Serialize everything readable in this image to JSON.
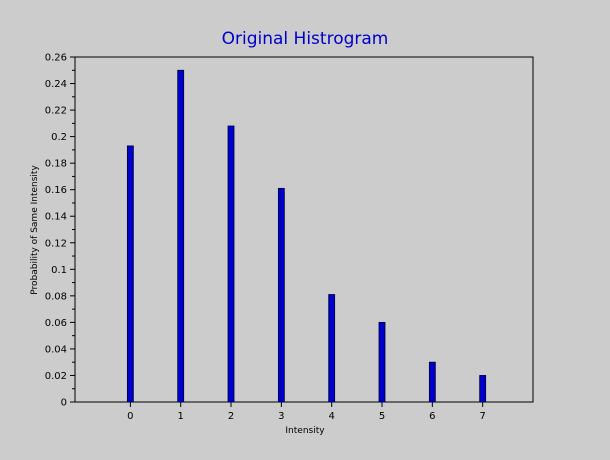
{
  "chart_data": {
    "type": "bar",
    "title": "Original Histrogram",
    "xlabel": "Intensity",
    "ylabel": "Probability of Same Intensity",
    "categories": [
      "0",
      "1",
      "2",
      "3",
      "4",
      "5",
      "6",
      "7"
    ],
    "x": [
      0,
      1,
      2,
      3,
      4,
      5,
      6,
      7
    ],
    "values": [
      0.193,
      0.25,
      0.208,
      0.161,
      0.081,
      0.06,
      0.03,
      0.02
    ],
    "xlim": [
      -1.1,
      8.0
    ],
    "ylim": [
      0,
      0.26
    ],
    "yticks": [
      "0",
      "0.02",
      "0.04",
      "0.06",
      "0.08",
      "0.1",
      "0.12",
      "0.14",
      "0.16",
      "0.18",
      "0.2",
      "0.22",
      "0.24",
      "0.26"
    ],
    "grid": false,
    "legend": "none",
    "colors": {
      "bar_fill": "#0000cc",
      "bar_edge": "#000033",
      "title": "#0000cc",
      "background": "#cccccc",
      "plot_background": "#cccccc",
      "axis": "#000000"
    }
  }
}
